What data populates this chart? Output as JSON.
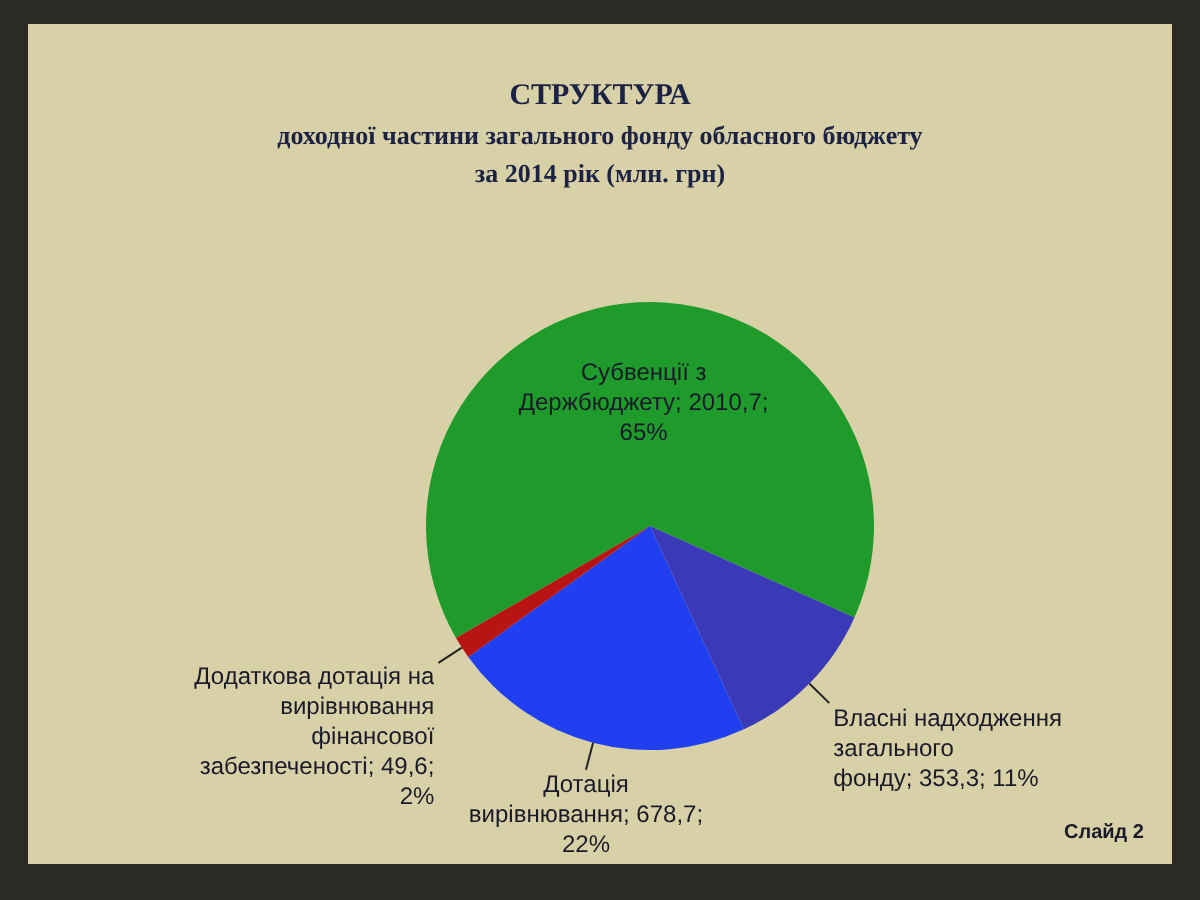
{
  "chart_data": {
    "type": "pie",
    "title": "СТРУКТУРА",
    "subtitle": "доходної частини загального фонду обласного бюджету за 2014 рік (млн. грн)",
    "categories": [
      "Субвенції з Держбюджету",
      "Власні надходження загального фонду",
      "Дотація вирівнювання",
      "Додаткова дотація на вирівнювання фінансової забезпеченості"
    ],
    "values": [
      2010.7,
      353.3,
      678.7,
      49.6
    ],
    "value_labels": [
      "2010,7; 65%",
      "353,3; 11%",
      "678,7; 22%",
      "49,6; 2%"
    ],
    "colors": [
      "#1f9b2c",
      "#3a3ab8",
      "#1f3ff0",
      "#b81414"
    ],
    "annotations": [
      "Слайд 2"
    ]
  }
}
